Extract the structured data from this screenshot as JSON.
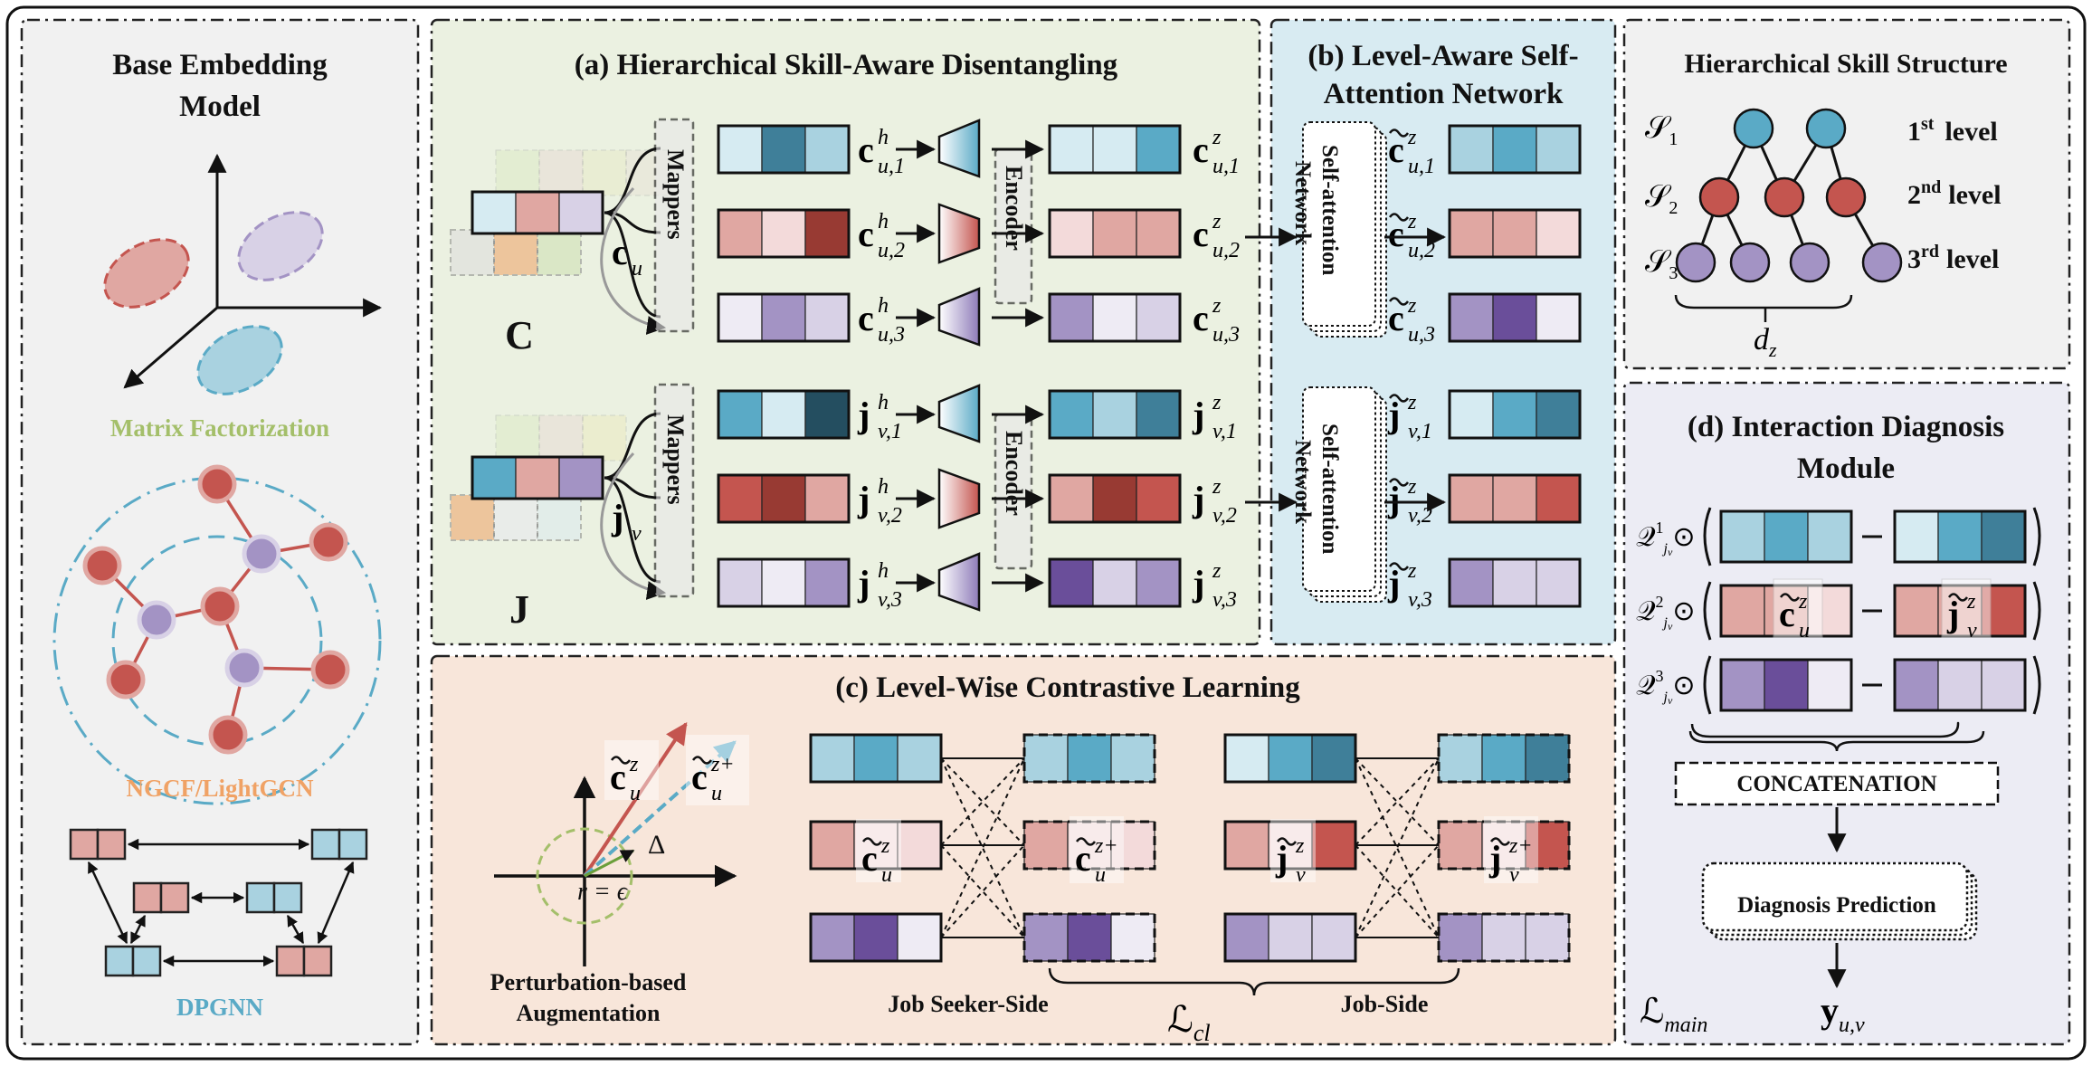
{
  "panels": {
    "base": {
      "title1": "Base Embedding",
      "title2": "Model",
      "mf": "Matrix Factorization",
      "ngcf": "NGCF/LightGCN",
      "dpgnn": "DPGNN"
    },
    "a": {
      "title": "(a) Hierarchical Skill-Aware Disentangling"
    },
    "b": {
      "title1": "(b) Level-Aware Self-",
      "title2": "Attention Network"
    },
    "c": {
      "title": "(c) Level-Wise Contrastive Learning"
    },
    "d": {
      "title1": "(d) Interaction Diagnosis",
      "title2": "Module"
    },
    "hier": {
      "title": "Hierarchical Skill Structure"
    }
  },
  "labels": {
    "C": "C",
    "J": "J",
    "mappers": "Mappers",
    "encoder": "Encoder",
    "self_attention1": "Self-attention",
    "self_attention2": "Network",
    "perturbation1": "Perturbation-based",
    "perturbation2": "Augmentation",
    "job_seeker_side": "Job Seeker-Side",
    "job_side": "Job-Side",
    "concatenation": "CONCATENATION",
    "diagnosis_prediction": "Diagnosis Prediction",
    "level1": "1",
    "level1_sup": "st",
    "level2": "2",
    "level2_sup": "nd",
    "level3": "3",
    "level3_sup": "rd",
    "level_word": "level",
    "delta": "Δ",
    "r_eq": "r = ϵ"
  },
  "colors": {
    "blue_dark": "#3f7f99",
    "blue_mid": "#5aaac6",
    "blue_light": "#a9d2e0",
    "blue_pale": "#d6ebf2",
    "red_dark": "#983a33",
    "red_mid": "#c4554f",
    "red_light": "#e0a7a2",
    "red_pale": "#f3dada",
    "purple_dark": "#6a4e9a",
    "purple_mid": "#a393c4",
    "purple_light": "#d8d1e6",
    "purple_pale": "#eeebf4",
    "panel_gray": "#f1f1f1",
    "panel_green": "#ebf1e1",
    "panel_blue": "#d8ebf2",
    "panel_peach": "#f8e6da",
    "panel_lavender": "#ececf4",
    "mf_green": "#a4bf6a",
    "ngcf_orange": "#f0a265",
    "dpgnn_blue": "#5aaac6"
  }
}
